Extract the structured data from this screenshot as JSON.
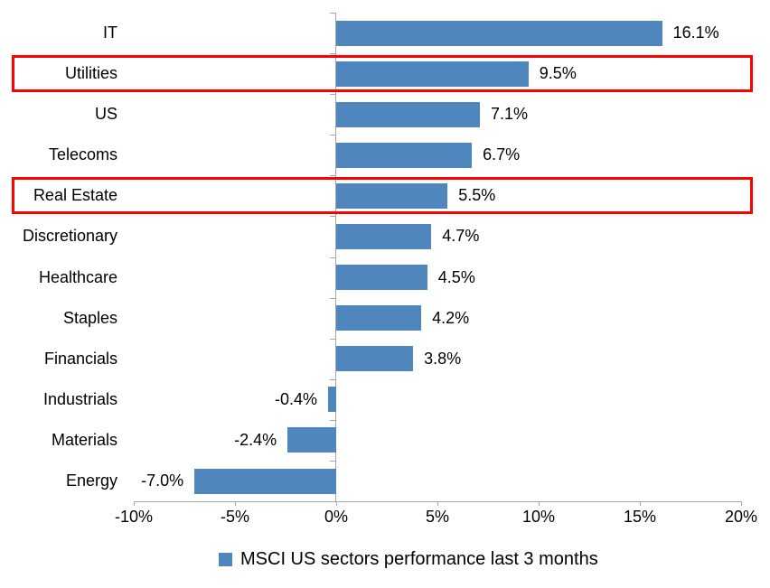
{
  "chart_data": {
    "type": "bar",
    "orientation": "horizontal",
    "title": "",
    "categories": [
      "IT",
      "Utilities",
      "US",
      "Telecoms",
      "Real Estate",
      "Discretionary",
      "Healthcare",
      "Staples",
      "Financials",
      "Industrials",
      "Materials",
      "Energy"
    ],
    "values": [
      16.1,
      9.5,
      7.1,
      6.7,
      5.5,
      4.7,
      4.5,
      4.2,
      3.8,
      -0.4,
      -2.4,
      -7.0
    ],
    "value_labels": [
      "16.1%",
      "9.5%",
      "7.1%",
      "6.7%",
      "5.5%",
      "4.7%",
      "4.5%",
      "4.2%",
      "3.8%",
      "-0.4%",
      "-2.4%",
      "-7.0%"
    ],
    "highlighted_categories": [
      "Utilities",
      "Real Estate"
    ],
    "x_axis": {
      "min": -10,
      "max": 20,
      "ticks": [
        -10,
        -5,
        0,
        5,
        10,
        15,
        20
      ],
      "tick_labels": [
        "-10%",
        "-5%",
        "0%",
        "5%",
        "10%",
        "15%",
        "20%"
      ]
    },
    "legend": {
      "label": "MSCI US sectors performance last 3 months",
      "position": "bottom"
    },
    "colors": {
      "bar": "#4e86bd",
      "highlight_box": "#ff0000",
      "axis": "#a6a6a6",
      "text": "#000000"
    },
    "grid": false
  }
}
